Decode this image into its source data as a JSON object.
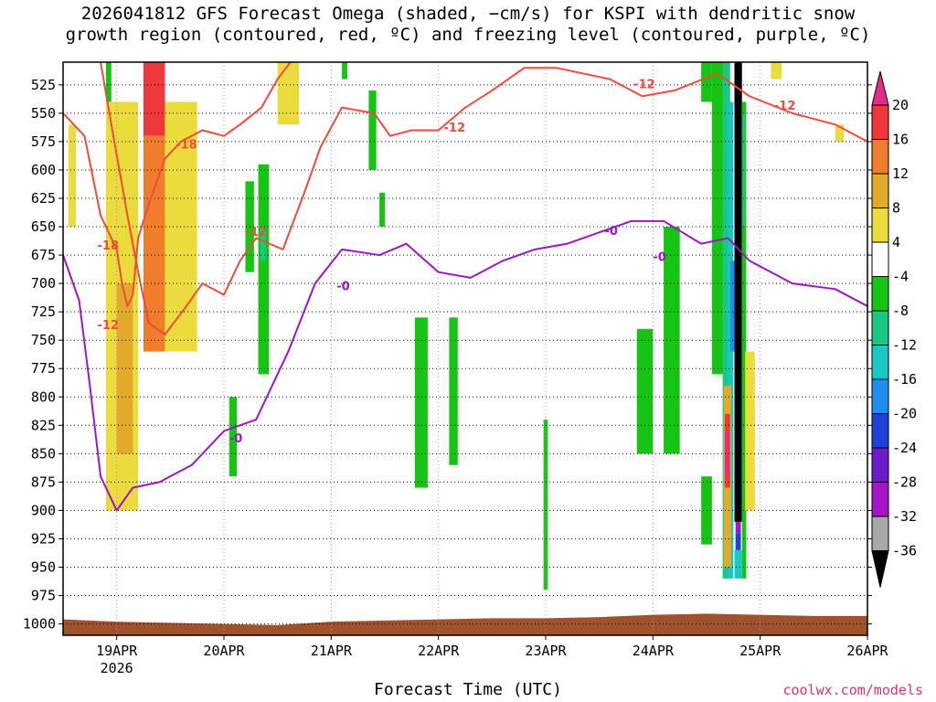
{
  "title": {
    "line1": "2026041812 GFS Forecast Omega (shaded, −cm/s) for KSPI with dendritic snow",
    "line2": "growth region (contoured, red, ºC) and freezing level (contoured, purple, ºC)"
  },
  "credit": "coolwx.com/models",
  "chart_data": {
    "type": "heatmap",
    "xlabel": "Forecast Time (UTC)",
    "x_ticks": [
      "19APR",
      "20APR",
      "21APR",
      "22APR",
      "23APR",
      "24APR",
      "25APR",
      "26APR"
    ],
    "x_sublabel": {
      "tick": "19APR",
      "text": "2026"
    },
    "xlim_days_apr": [
      18.5,
      26.0
    ],
    "y_ticks": [
      "525",
      "550",
      "575",
      "600",
      "625",
      "650",
      "675",
      "700",
      "725",
      "750",
      "775",
      "800",
      "825",
      "850",
      "875",
      "900",
      "925",
      "950",
      "975",
      "1000"
    ],
    "ylim_hpa": [
      505,
      1010
    ],
    "y_inverted": true,
    "grid": "dotted",
    "colorbar": {
      "position": "right",
      "tick_labels": [
        "20",
        "16",
        "12",
        "8",
        "4",
        "-4",
        "-8",
        "-12",
        "-16",
        "-20",
        "-24",
        "-28",
        "-32",
        "-36"
      ],
      "bins": [
        {
          "range": [
            20,
            24
          ],
          "color": "#e8298a"
        },
        {
          "range": [
            16,
            20
          ],
          "color": "#f0383c"
        },
        {
          "range": [
            12,
            16
          ],
          "color": "#f07d2c"
        },
        {
          "range": [
            8,
            12
          ],
          "color": "#e3a92a"
        },
        {
          "range": [
            4,
            8
          ],
          "color": "#ecdb3c"
        },
        {
          "range": [
            -4,
            4
          ],
          "color": "#ffffff"
        },
        {
          "range": [
            -8,
            -4
          ],
          "color": "#16c414"
        },
        {
          "range": [
            -12,
            -8
          ],
          "color": "#1ac882"
        },
        {
          "range": [
            -16,
            -12
          ],
          "color": "#1cc6c6"
        },
        {
          "range": [
            -20,
            -16
          ],
          "color": "#1f8ef0"
        },
        {
          "range": [
            -24,
            -20
          ],
          "color": "#2040d8"
        },
        {
          "range": [
            -28,
            -24
          ],
          "color": "#6a1cc8"
        },
        {
          "range": [
            -32,
            -28
          ],
          "color": "#a814c8"
        },
        {
          "range": [
            -36,
            -32
          ],
          "color": "#a8a8a8"
        },
        {
          "range": [
            -40,
            -36
          ],
          "color": "#000000"
        }
      ]
    },
    "omega_regions": [
      {
        "bin": 4,
        "x": [
          18.55,
          18.62
        ],
        "p": [
          560,
          650
        ]
      },
      {
        "bin": 4,
        "x": [
          18.9,
          19.2
        ],
        "p": [
          540,
          900
        ]
      },
      {
        "bin": 3,
        "x": [
          19.0,
          19.15
        ],
        "p": [
          700,
          850
        ]
      },
      {
        "bin": 1,
        "x": [
          19.25,
          19.45
        ],
        "p": [
          505,
          570
        ]
      },
      {
        "bin": 2,
        "x": [
          19.25,
          19.45
        ],
        "p": [
          570,
          760
        ]
      },
      {
        "bin": 4,
        "x": [
          19.45,
          19.75
        ],
        "p": [
          540,
          760
        ]
      },
      {
        "bin": 4,
        "x": [
          20.5,
          20.7
        ],
        "p": [
          505,
          560
        ]
      },
      {
        "bin": 6,
        "x": [
          18.9,
          18.95
        ],
        "p": [
          505,
          540
        ]
      },
      {
        "bin": 6,
        "x": [
          20.05,
          20.12
        ],
        "p": [
          800,
          870
        ]
      },
      {
        "bin": 6,
        "x": [
          20.2,
          20.28
        ],
        "p": [
          610,
          690
        ]
      },
      {
        "bin": 6,
        "x": [
          20.32,
          20.42
        ],
        "p": [
          595,
          780
        ]
      },
      {
        "bin": 7,
        "x": [
          20.34,
          20.39
        ],
        "p": [
          650,
          680
        ]
      },
      {
        "bin": 6,
        "x": [
          21.1,
          21.15
        ],
        "p": [
          505,
          520
        ]
      },
      {
        "bin": 6,
        "x": [
          21.35,
          21.42
        ],
        "p": [
          530,
          600
        ]
      },
      {
        "bin": 6,
        "x": [
          21.45,
          21.5
        ],
        "p": [
          620,
          650
        ]
      },
      {
        "bin": 6,
        "x": [
          21.78,
          21.9
        ],
        "p": [
          730,
          880
        ]
      },
      {
        "bin": 6,
        "x": [
          22.1,
          22.18
        ],
        "p": [
          730,
          860
        ]
      },
      {
        "bin": 6,
        "x": [
          22.98,
          23.02
        ],
        "p": [
          820,
          970
        ]
      },
      {
        "bin": 6,
        "x": [
          23.85,
          24.0
        ],
        "p": [
          740,
          850
        ]
      },
      {
        "bin": 6,
        "x": [
          24.1,
          24.25
        ],
        "p": [
          650,
          850
        ]
      },
      {
        "bin": 6,
        "x": [
          24.45,
          24.55
        ],
        "p": [
          505,
          540
        ]
      },
      {
        "bin": 6,
        "x": [
          24.45,
          24.55
        ],
        "p": [
          870,
          930
        ]
      },
      {
        "bin": 6,
        "x": [
          24.55,
          24.7
        ],
        "p": [
          505,
          780
        ]
      },
      {
        "bin": 7,
        "x": [
          24.65,
          24.72
        ],
        "p": [
          505,
          960
        ]
      },
      {
        "bin": 8,
        "x": [
          24.7,
          24.75
        ],
        "p": [
          540,
          960
        ]
      },
      {
        "bin": 9,
        "x": [
          24.72,
          24.76
        ],
        "p": [
          680,
          760
        ]
      },
      {
        "bin": 3,
        "x": [
          24.66,
          24.73
        ],
        "p": [
          790,
          950
        ]
      },
      {
        "bin": 1,
        "x": [
          24.67,
          24.72
        ],
        "p": [
          815,
          880
        ]
      },
      {
        "bin": 0,
        "x": [
          24.675,
          24.71
        ],
        "p": [
          830,
          870
        ]
      },
      {
        "bin": 14,
        "x": [
          24.76,
          24.83
        ],
        "p": [
          505,
          910
        ]
      },
      {
        "bin": 10,
        "x": [
          24.77,
          24.82
        ],
        "p": [
          920,
          935
        ]
      },
      {
        "bin": 12,
        "x": [
          24.77,
          24.82
        ],
        "p": [
          910,
          920
        ]
      },
      {
        "bin": 8,
        "x": [
          24.76,
          24.83
        ],
        "p": [
          935,
          960
        ]
      },
      {
        "bin": 6,
        "x": [
          24.83,
          24.87
        ],
        "p": [
          540,
          960
        ]
      },
      {
        "bin": 7,
        "x": [
          24.84,
          24.86
        ],
        "p": [
          550,
          650
        ]
      },
      {
        "bin": 4,
        "x": [
          24.86,
          24.95
        ],
        "p": [
          760,
          900
        ]
      },
      {
        "bin": 4,
        "x": [
          25.1,
          25.2
        ],
        "p": [
          505,
          520
        ]
      },
      {
        "bin": 4,
        "x": [
          25.7,
          25.78
        ],
        "p": [
          560,
          575
        ]
      }
    ],
    "contours": [
      {
        "level": -18,
        "color": "#f04a3c",
        "points": [
          [
            18.5,
            550
          ],
          [
            18.7,
            570
          ],
          [
            18.85,
            640
          ],
          [
            19.0,
            670
          ],
          [
            19.05,
            700
          ],
          [
            19.1,
            720
          ],
          [
            19.15,
            710
          ],
          [
            19.2,
            660
          ],
          [
            19.3,
            630
          ],
          [
            19.45,
            590
          ],
          [
            19.6,
            575
          ],
          [
            19.8,
            565
          ],
          [
            20.0,
            570
          ],
          [
            20.15,
            560
          ],
          [
            20.35,
            545
          ],
          [
            20.5,
            520
          ],
          [
            20.62,
            505
          ]
        ]
      },
      {
        "level": -12,
        "color": "#f04a3c",
        "points": [
          [
            18.85,
            505
          ],
          [
            18.95,
            560
          ],
          [
            19.1,
            640
          ],
          [
            19.2,
            690
          ],
          [
            19.3,
            735
          ],
          [
            19.45,
            745
          ],
          [
            19.65,
            720
          ],
          [
            19.8,
            700
          ],
          [
            20.0,
            710
          ],
          [
            20.15,
            680
          ],
          [
            20.3,
            660
          ],
          [
            20.55,
            670
          ],
          [
            20.75,
            620
          ],
          [
            20.9,
            580
          ],
          [
            21.1,
            545
          ],
          [
            21.4,
            550
          ],
          [
            21.55,
            570
          ],
          [
            21.75,
            565
          ],
          [
            22.0,
            565
          ],
          [
            22.25,
            545
          ],
          [
            22.5,
            530
          ],
          [
            22.8,
            510
          ],
          [
            23.1,
            510
          ],
          [
            23.35,
            515
          ],
          [
            23.6,
            520
          ],
          [
            23.9,
            535
          ],
          [
            24.2,
            530
          ],
          [
            24.6,
            515
          ],
          [
            24.9,
            535
          ],
          [
            25.3,
            550
          ],
          [
            25.7,
            560
          ],
          [
            26.0,
            575
          ]
        ]
      },
      {
        "level": 0,
        "color": "#9a18c4",
        "points": [
          [
            18.5,
            675
          ],
          [
            18.65,
            715
          ],
          [
            18.75,
            790
          ],
          [
            18.85,
            870
          ],
          [
            19.0,
            900
          ],
          [
            19.15,
            880
          ],
          [
            19.4,
            875
          ],
          [
            19.7,
            860
          ],
          [
            20.0,
            830
          ],
          [
            20.3,
            820
          ],
          [
            20.6,
            760
          ],
          [
            20.85,
            700
          ],
          [
            21.1,
            670
          ],
          [
            21.45,
            675
          ],
          [
            21.7,
            665
          ],
          [
            22.0,
            690
          ],
          [
            22.3,
            695
          ],
          [
            22.6,
            680
          ],
          [
            22.9,
            670
          ],
          [
            23.2,
            665
          ],
          [
            23.5,
            655
          ],
          [
            23.8,
            645
          ],
          [
            24.1,
            645
          ],
          [
            24.45,
            665
          ],
          [
            24.7,
            660
          ],
          [
            24.9,
            680
          ],
          [
            25.3,
            700
          ],
          [
            25.7,
            705
          ],
          [
            26.0,
            720
          ]
        ]
      }
    ],
    "contour_labels": [
      {
        "text": "-18",
        "x": 19.55,
        "p": 577,
        "color": "#f04a3c"
      },
      {
        "text": "-18",
        "x": 18.82,
        "p": 666,
        "color": "#f04a3c"
      },
      {
        "text": "-12",
        "x": 20.2,
        "p": 654,
        "color": "#f04a3c"
      },
      {
        "text": "-12",
        "x": 18.82,
        "p": 736,
        "color": "#f04a3c"
      },
      {
        "text": "-12",
        "x": 22.05,
        "p": 562,
        "color": "#f04a3c"
      },
      {
        "text": "-12",
        "x": 23.82,
        "p": 524,
        "color": "#f04a3c"
      },
      {
        "text": "-12",
        "x": 25.13,
        "p": 543,
        "color": "#f04a3c"
      },
      {
        "text": "-0",
        "x": 21.05,
        "p": 702,
        "color": "#9a18c4"
      },
      {
        "text": "-0",
        "x": 23.55,
        "p": 653,
        "color": "#9a18c4"
      },
      {
        "text": "-0",
        "x": 24.0,
        "p": 676,
        "color": "#9a18c4"
      },
      {
        "text": "-0",
        "x": 20.05,
        "p": 836,
        "color": "#9a18c4"
      }
    ],
    "terrain": {
      "color": "#a0522d",
      "top_hpa": [
        [
          18.5,
          996
        ],
        [
          19.0,
          998
        ],
        [
          19.5,
          999
        ],
        [
          20.0,
          1000
        ],
        [
          20.5,
          1001
        ],
        [
          21.0,
          998
        ],
        [
          21.5,
          997
        ],
        [
          22.0,
          996
        ],
        [
          22.5,
          995
        ],
        [
          23.0,
          995
        ],
        [
          23.5,
          994
        ],
        [
          24.0,
          992
        ],
        [
          24.5,
          991
        ],
        [
          25.0,
          992
        ],
        [
          25.5,
          993
        ],
        [
          26.0,
          993
        ]
      ]
    }
  }
}
